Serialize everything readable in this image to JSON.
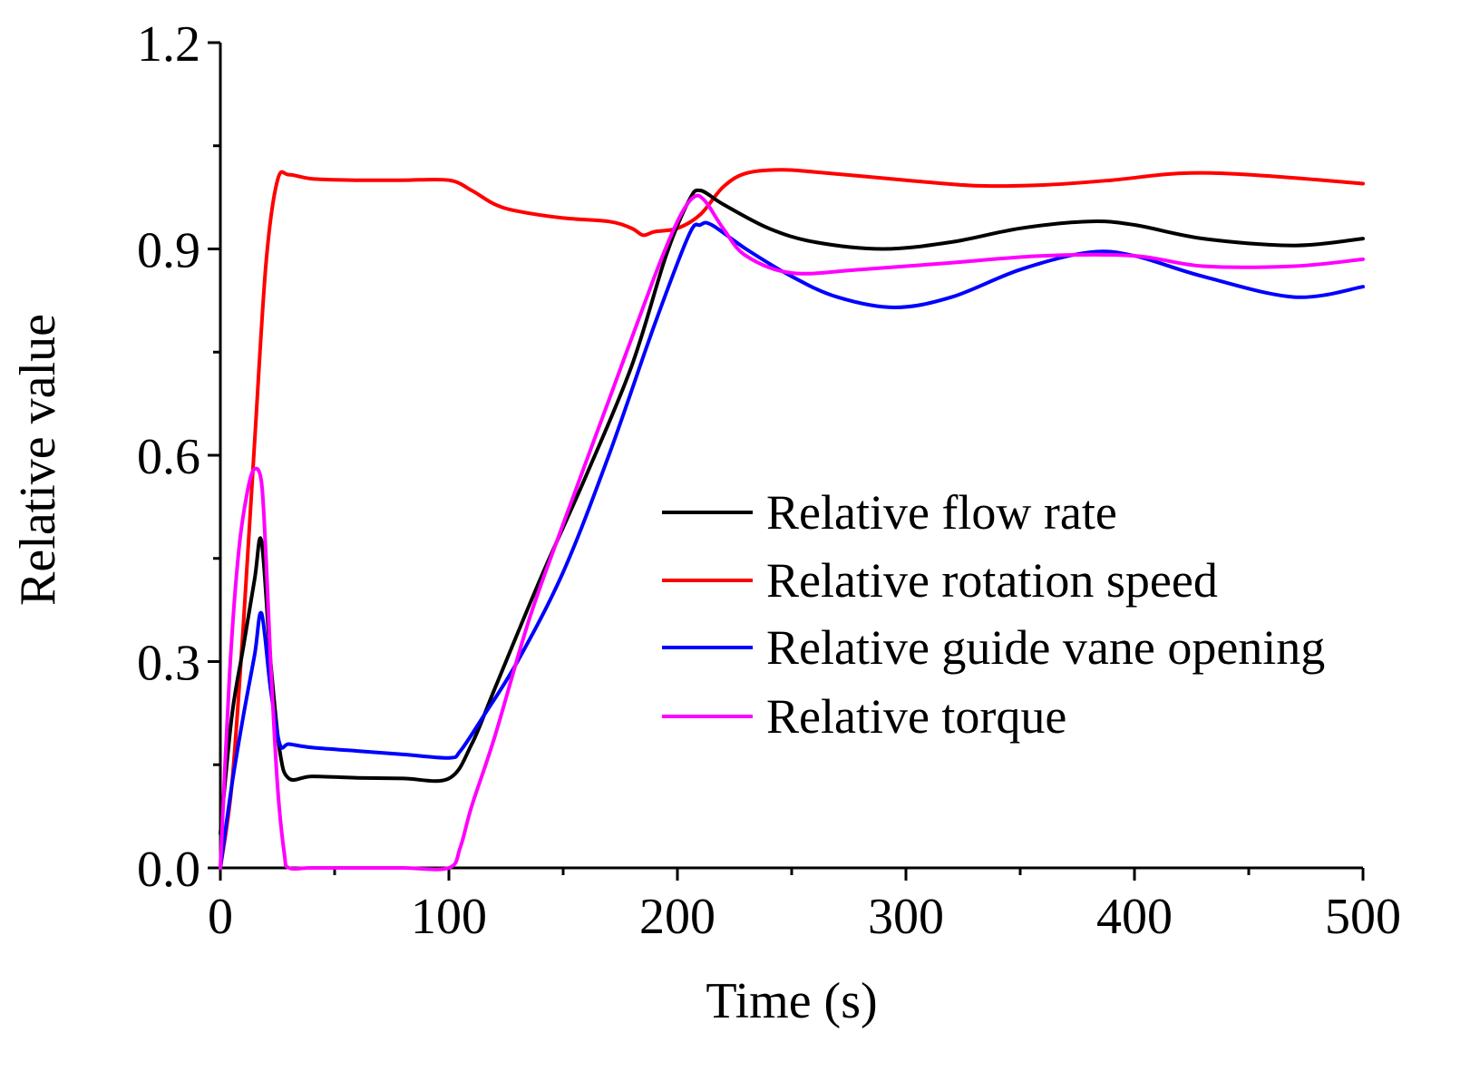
{
  "chart_data": {
    "type": "line",
    "title": "",
    "xlabel": "Time (s)",
    "ylabel": "Relative value",
    "xlim": [
      0,
      500
    ],
    "ylim": [
      0.0,
      1.2
    ],
    "xticks": [
      0,
      100,
      200,
      300,
      400,
      500
    ],
    "xtick_labels": [
      "0",
      "100",
      "200",
      "300",
      "400",
      "500"
    ],
    "yticks": [
      0.0,
      0.3,
      0.6,
      0.9,
      1.2
    ],
    "ytick_labels": [
      "0.0",
      "0.3",
      "0.6",
      "0.9",
      "1.2"
    ],
    "grid": false,
    "legend_position": "center-right",
    "series": [
      {
        "name": "Relative flow rate",
        "color": "#000000",
        "x": [
          0,
          5,
          10,
          15,
          18,
          22,
          26,
          30,
          40,
          60,
          80,
          100,
          110,
          120,
          140,
          160,
          180,
          195,
          205,
          210,
          220,
          240,
          260,
          290,
          320,
          350,
          380,
          400,
          430,
          470,
          500
        ],
        "y": [
          0.05,
          0.22,
          0.32,
          0.42,
          0.475,
          0.3,
          0.17,
          0.13,
          0.133,
          0.131,
          0.13,
          0.13,
          0.18,
          0.26,
          0.42,
          0.57,
          0.73,
          0.89,
          0.97,
          0.985,
          0.965,
          0.93,
          0.91,
          0.9,
          0.91,
          0.93,
          0.94,
          0.935,
          0.915,
          0.905,
          0.915
        ]
      },
      {
        "name": "Relative rotation speed",
        "color": "#ff0000",
        "x": [
          0,
          5,
          10,
          15,
          20,
          25,
          30,
          40,
          60,
          80,
          100,
          110,
          120,
          130,
          150,
          170,
          180,
          185,
          190,
          200,
          210,
          220,
          230,
          245,
          260,
          300,
          330,
          360,
          390,
          420,
          450,
          500
        ],
        "y": [
          0.0,
          0.12,
          0.35,
          0.62,
          0.88,
          1.0,
          1.008,
          1.002,
          1.0,
          1.0,
          1.0,
          0.985,
          0.965,
          0.955,
          0.945,
          0.94,
          0.93,
          0.92,
          0.925,
          0.93,
          0.95,
          0.99,
          1.01,
          1.015,
          1.012,
          1.0,
          0.992,
          0.993,
          1.0,
          1.01,
          1.008,
          0.995
        ]
      },
      {
        "name": "Relative guide vane opening",
        "color": "#0000ff",
        "x": [
          0,
          5,
          10,
          15,
          18,
          22,
          26,
          30,
          40,
          60,
          80,
          100,
          105,
          115,
          130,
          150,
          170,
          190,
          205,
          210,
          215,
          230,
          250,
          270,
          295,
          320,
          350,
          380,
          400,
          430,
          470,
          500
        ],
        "y": [
          0.0,
          0.12,
          0.22,
          0.31,
          0.37,
          0.26,
          0.18,
          0.18,
          0.175,
          0.17,
          0.165,
          0.16,
          0.17,
          0.22,
          0.3,
          0.43,
          0.6,
          0.79,
          0.92,
          0.935,
          0.935,
          0.9,
          0.86,
          0.83,
          0.815,
          0.83,
          0.87,
          0.895,
          0.89,
          0.86,
          0.83,
          0.845
        ]
      },
      {
        "name": "Relative torque",
        "color": "#ff00ff",
        "x": [
          0,
          4,
          8,
          12,
          15,
          18,
          20,
          22,
          25,
          28,
          30,
          40,
          60,
          80,
          100,
          105,
          110,
          120,
          135,
          150,
          170,
          190,
          200,
          207,
          212,
          220,
          230,
          250,
          280,
          320,
          360,
          400,
          430,
          470,
          500
        ],
        "y": [
          0.0,
          0.28,
          0.46,
          0.55,
          0.58,
          0.56,
          0.45,
          0.3,
          0.12,
          0.02,
          0.0,
          0.0,
          0.0,
          0.0,
          0.0,
          0.03,
          0.09,
          0.19,
          0.36,
          0.5,
          0.68,
          0.86,
          0.94,
          0.975,
          0.97,
          0.93,
          0.89,
          0.865,
          0.87,
          0.88,
          0.89,
          0.89,
          0.875,
          0.875,
          0.885
        ]
      }
    ]
  }
}
